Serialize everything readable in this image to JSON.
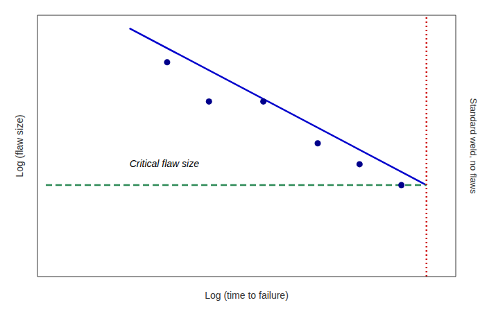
{
  "chart_data": {
    "type": "scatter",
    "title": "",
    "xlabel": "Log (time to failure)",
    "ylabel": "Log (flaw size)",
    "xlim": [
      0,
      10
    ],
    "ylim": [
      0,
      10
    ],
    "tick_labels": false,
    "grid": false,
    "series": [
      {
        "type": "line",
        "color": "#0000cc",
        "line_style": "solid",
        "x": [
          2.2,
          9.3
        ],
        "values": [
          9.5,
          3.5
        ]
      },
      {
        "type": "scatter",
        "color": "#00008B",
        "marker": "circle",
        "x": [
          3.1,
          4.1,
          5.4,
          6.7,
          7.7,
          8.7
        ],
        "values": [
          8.2,
          6.7,
          6.7,
          5.1,
          4.3,
          3.5
        ]
      },
      {
        "type": "line",
        "color": "#2e8b57",
        "line_style": "dashed",
        "x": [
          0.2,
          9.3
        ],
        "values": [
          3.5,
          3.5
        ]
      },
      {
        "type": "line",
        "color": "#cc0000",
        "line_style": "dotted",
        "x": [
          9.3,
          9.3
        ],
        "values": [
          0.0,
          10.0
        ]
      }
    ],
    "annotations": [
      {
        "text": "Critical flaw size",
        "x": 2.2,
        "y": 4.1
      },
      {
        "text": "Standard weld, no flaws"
      }
    ]
  }
}
